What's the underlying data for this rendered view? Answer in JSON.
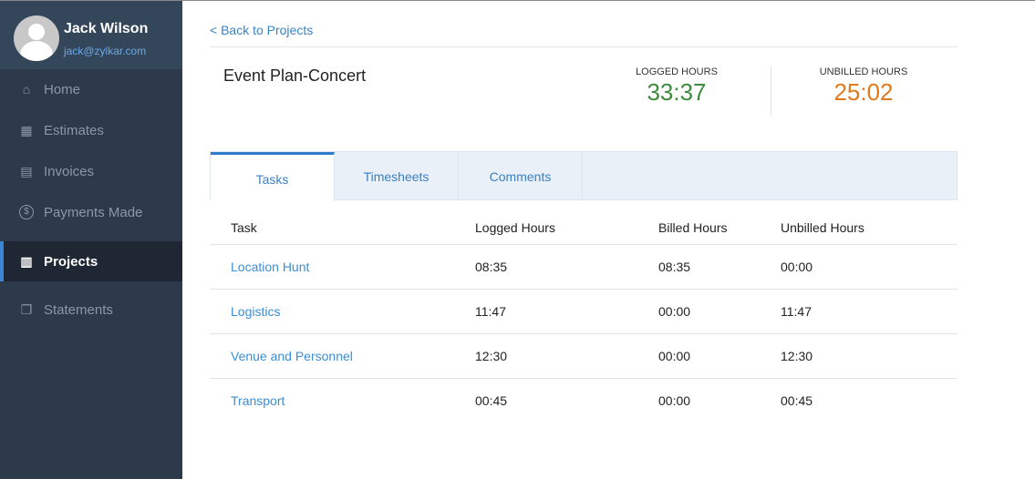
{
  "user": {
    "name": "Jack Wilson",
    "email": "jack@zylkar.com"
  },
  "nav": [
    {
      "label": "Home",
      "icon": "home-icon",
      "glyph": "⌂"
    },
    {
      "label": "Estimates",
      "icon": "calculator-icon",
      "glyph": "▦"
    },
    {
      "label": "Invoices",
      "icon": "document-icon",
      "glyph": "▤"
    },
    {
      "label": "Payments Made",
      "icon": "dollar-circle-icon",
      "glyph": "$"
    },
    {
      "label": "Projects",
      "icon": "projects-icon",
      "glyph": "▥",
      "active": true
    },
    {
      "label": "Statements",
      "icon": "statements-icon",
      "glyph": "❐"
    }
  ],
  "back_label": "< Back to Projects",
  "project": {
    "title": "Event Plan-Concert",
    "logged_label": "LOGGED HOURS",
    "logged": "33:37",
    "unbilled_label": "UNBILLED HOURS",
    "unbilled": "25:02"
  },
  "colors": {
    "logged": "#3f8a3f",
    "unbilled": "#e07a1f",
    "accent": "#2f7ccf"
  },
  "tabs": [
    "Tasks",
    "Timesheets",
    "Comments"
  ],
  "table": {
    "headers": [
      "Task",
      "Logged Hours",
      "Billed Hours",
      "Unbilled Hours"
    ],
    "rows": [
      [
        "Location Hunt",
        "08:35",
        "08:35",
        "00:00"
      ],
      [
        "Logistics",
        "11:47",
        "00:00",
        "11:47"
      ],
      [
        "Venue and Personnel",
        "12:30",
        "00:00",
        "12:30"
      ],
      [
        "Transport",
        "00:45",
        "00:00",
        "00:45"
      ]
    ]
  }
}
